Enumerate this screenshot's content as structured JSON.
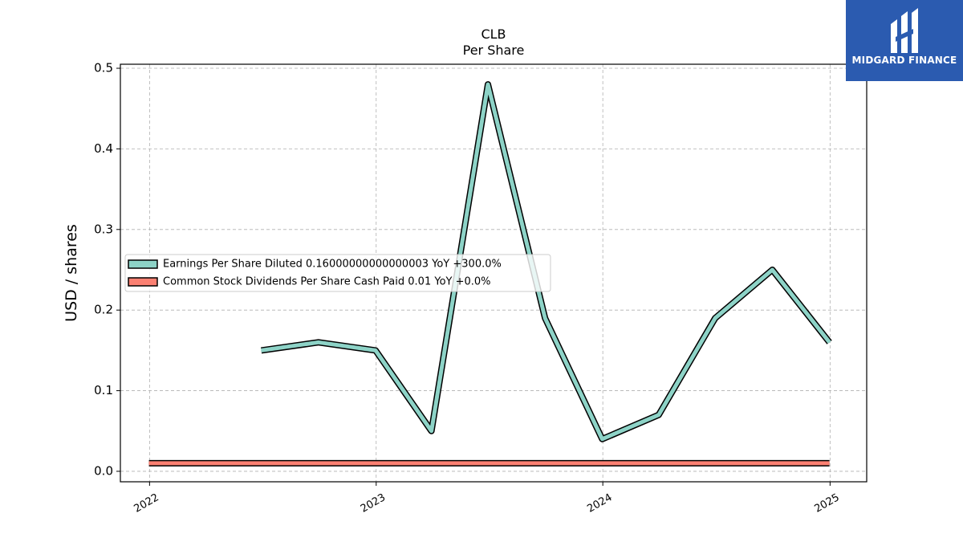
{
  "chart_data": {
    "type": "line",
    "title": "CLB",
    "subtitle": "Per  Share",
    "xlabel": "",
    "ylabel": "USD / shares",
    "xlim": [
      "2021-11-15",
      "2025-03-01"
    ],
    "ylim": [
      -0.013,
      0.505
    ],
    "yticks": [
      0.0,
      0.1,
      0.2,
      0.3,
      0.4,
      0.5
    ],
    "ytick_labels": [
      "0.0",
      "0.1",
      "0.2",
      "0.3",
      "0.4",
      "0.5"
    ],
    "xticks": [
      "2022-01-01",
      "2023-01-01",
      "2024-01-01",
      "2025-01-01"
    ],
    "xtick_labels": [
      "2022",
      "2023",
      "2024",
      "2025"
    ],
    "grid": true,
    "legend_position": "center-left",
    "series": [
      {
        "name": "Earnings Per Share Diluted",
        "legend_label": "Earnings Per Share Diluted  0.16000000000000003 YoY +300.0%",
        "color": "#8dd3c7",
        "x": [
          "2022-06-30",
          "2022-09-30",
          "2022-12-31",
          "2023-03-31",
          "2023-06-30",
          "2023-09-30",
          "2023-12-31",
          "2024-03-31",
          "2024-06-30",
          "2024-09-30",
          "2024-12-31"
        ],
        "y": [
          0.15,
          0.16,
          0.15,
          0.05,
          0.48,
          0.19,
          0.04,
          0.07,
          0.19,
          0.25,
          0.16
        ]
      },
      {
        "name": "Common Stock Dividends Per Share Cash Paid",
        "legend_label": "Common Stock Dividends Per Share Cash Paid  0.01 YoY +0.0%",
        "color": "#fb8072",
        "x": [
          "2021-12-31",
          "2022-03-31",
          "2022-06-30",
          "2022-09-30",
          "2022-12-31",
          "2023-03-31",
          "2023-06-30",
          "2023-09-30",
          "2023-12-31",
          "2024-03-31",
          "2024-06-30",
          "2024-09-30",
          "2024-12-31"
        ],
        "y": [
          0.01,
          0.01,
          0.01,
          0.01,
          0.01,
          0.01,
          0.01,
          0.01,
          0.01,
          0.01,
          0.01,
          0.01,
          0.01
        ]
      }
    ]
  },
  "logo": {
    "text": "MIDGARD FINANCE",
    "color": "#2b5bb0"
  }
}
